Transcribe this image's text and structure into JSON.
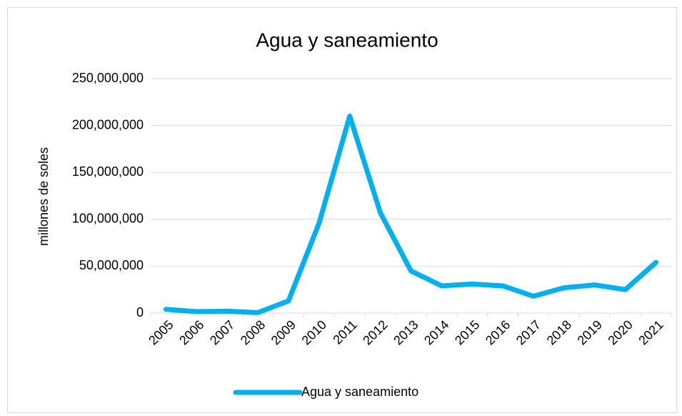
{
  "chart_data": {
    "type": "line",
    "title": "Agua y saneamiento",
    "y_label": "millones de soles",
    "categories": [
      "2005",
      "2006",
      "2007",
      "2008",
      "2009",
      "2010",
      "2011",
      "2012",
      "2013",
      "2014",
      "2015",
      "2016",
      "2017",
      "2018",
      "2019",
      "2020",
      "2021"
    ],
    "series": [
      {
        "name": "Agua y saneamiento",
        "color": "#00b0f0",
        "values": [
          4000000,
          1500000,
          2000000,
          500000,
          13000000,
          96000000,
          210000000,
          107000000,
          45000000,
          29000000,
          31000000,
          29000000,
          18000000,
          27000000,
          30000000,
          25000000,
          54000000
        ]
      }
    ],
    "ylim": [
      0,
      250000000
    ],
    "yticks": [
      0,
      {
        "value": 50000000,
        "label": "50,000,000"
      },
      {
        "value": 100000000,
        "label": "100,000,000"
      },
      {
        "value": 150000000,
        "label": "150,000,000"
      },
      {
        "value": 200000000,
        "label": "200,000,000"
      },
      {
        "value": 250000000,
        "label": "250,000,000"
      }
    ],
    "grid": true,
    "legend": "bottom"
  }
}
